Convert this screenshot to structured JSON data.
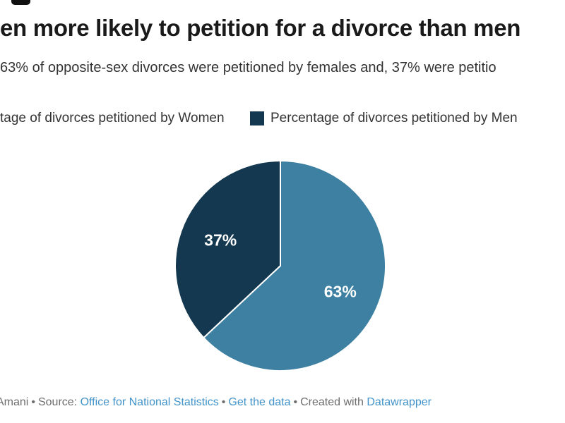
{
  "header": {
    "title": "en more likely to petition for a divorce than men",
    "subtitle": "63% of opposite-sex divorces were petitioned by females and, 37% were petitio"
  },
  "legend": {
    "items": [
      {
        "label": "tage of divorces petitioned by Women",
        "color": "#3d80a1",
        "swatch_visible": false
      },
      {
        "label": "Percentage of divorces petitioned by Men",
        "color": "#14384f",
        "swatch_visible": true
      }
    ]
  },
  "chart_data": {
    "type": "pie",
    "categories": [
      "Percentage of divorces petitioned by Women",
      "Percentage of divorces petitioned by Men"
    ],
    "values": [
      63,
      37
    ],
    "labels": [
      "63%",
      "37%"
    ],
    "slice_colors": [
      "#3d80a1",
      "#14384f"
    ],
    "label_color": "#ffffff",
    "start_angle_deg": 0,
    "direction": "clockwise",
    "legend_position": "top",
    "title": "en more likely to petition for a divorce than men",
    "subtitle": "63% of opposite-sex divorces were petitioned by females and, 37% were petitio"
  },
  "footer": {
    "byline": "Amani",
    "sep": "•",
    "source_label": "Source:",
    "source_link": "Office for National Statistics",
    "data_link": "Get the data",
    "created_label": "Created with",
    "tool_link": "Datawrapper"
  },
  "colors": {
    "background": "#ffffff",
    "title": "#1a1a1a",
    "subtitle": "#333333",
    "legend_text": "#333333",
    "slice_women": "#3d80a1",
    "slice_men": "#14384f",
    "footer_text": "#6e6e6e",
    "link": "#4293c9"
  }
}
